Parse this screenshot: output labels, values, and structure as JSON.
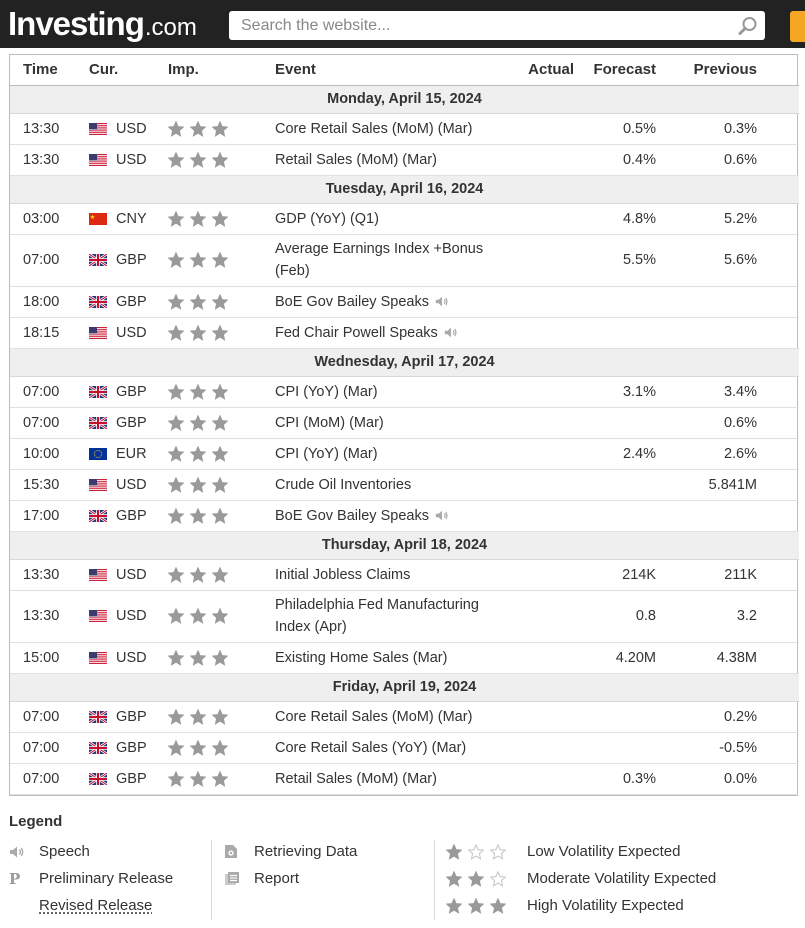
{
  "header": {
    "logo_main": "Investing",
    "logo_suffix": ".com",
    "search_placeholder": "Search the website..."
  },
  "columns": {
    "time": "Time",
    "currency": "Cur.",
    "importance": "Imp.",
    "event": "Event",
    "actual": "Actual",
    "forecast": "Forecast",
    "previous": "Previous"
  },
  "colors": {
    "star": "#9a9a9a",
    "day_row": "#efefef",
    "header_bar": "#222222"
  },
  "calendar": [
    {
      "type": "day",
      "label": "Monday, April 15, 2024"
    },
    {
      "type": "event",
      "time": "13:30",
      "flag": "us",
      "currency": "USD",
      "stars": 3,
      "event": "Core Retail Sales (MoM) (Mar)",
      "actual": "",
      "forecast": "0.5%",
      "previous": "0.3%"
    },
    {
      "type": "event",
      "time": "13:30",
      "flag": "us",
      "currency": "USD",
      "stars": 3,
      "event": "Retail Sales (MoM) (Mar)",
      "actual": "",
      "forecast": "0.4%",
      "previous": "0.6%"
    },
    {
      "type": "day",
      "label": "Tuesday, April 16, 2024"
    },
    {
      "type": "event",
      "time": "03:00",
      "flag": "cn",
      "currency": "CNY",
      "stars": 3,
      "event": "GDP (YoY) (Q1)",
      "actual": "",
      "forecast": "4.8%",
      "previous": "5.2%"
    },
    {
      "type": "event",
      "time": "07:00",
      "flag": "gb",
      "currency": "GBP",
      "stars": 3,
      "event": "Average Earnings Index +Bonus (Feb)",
      "actual": "",
      "forecast": "5.5%",
      "previous": "5.6%",
      "tall": true
    },
    {
      "type": "event",
      "time": "18:00",
      "flag": "gb",
      "currency": "GBP",
      "stars": 3,
      "event": "BoE Gov Bailey Speaks",
      "speech": true,
      "actual": "",
      "forecast": "",
      "previous": ""
    },
    {
      "type": "event",
      "time": "18:15",
      "flag": "us",
      "currency": "USD",
      "stars": 3,
      "event": "Fed Chair Powell Speaks",
      "speech": true,
      "actual": "",
      "forecast": "",
      "previous": ""
    },
    {
      "type": "day",
      "label": "Wednesday, April 17, 2024"
    },
    {
      "type": "event",
      "time": "07:00",
      "flag": "gb",
      "currency": "GBP",
      "stars": 3,
      "event": "CPI (YoY) (Mar)",
      "actual": "",
      "forecast": "3.1%",
      "previous": "3.4%"
    },
    {
      "type": "event",
      "time": "07:00",
      "flag": "gb",
      "currency": "GBP",
      "stars": 3,
      "event": "CPI (MoM) (Mar)",
      "actual": "",
      "forecast": "",
      "previous": "0.6%"
    },
    {
      "type": "event",
      "time": "10:00",
      "flag": "eu",
      "currency": "EUR",
      "stars": 3,
      "event": "CPI (YoY) (Mar)",
      "actual": "",
      "forecast": "2.4%",
      "previous": "2.6%"
    },
    {
      "type": "event",
      "time": "15:30",
      "flag": "us",
      "currency": "USD",
      "stars": 3,
      "event": "Crude Oil Inventories",
      "actual": "",
      "forecast": "",
      "previous": "5.841M"
    },
    {
      "type": "event",
      "time": "17:00",
      "flag": "gb",
      "currency": "GBP",
      "stars": 3,
      "event": "BoE Gov Bailey Speaks",
      "speech": true,
      "actual": "",
      "forecast": "",
      "previous": ""
    },
    {
      "type": "day",
      "label": "Thursday, April 18, 2024"
    },
    {
      "type": "event",
      "time": "13:30",
      "flag": "us",
      "currency": "USD",
      "stars": 3,
      "event": "Initial Jobless Claims",
      "actual": "",
      "forecast": "214K",
      "previous": "211K"
    },
    {
      "type": "event",
      "time": "13:30",
      "flag": "us",
      "currency": "USD",
      "stars": 3,
      "event": "Philadelphia Fed Manufacturing Index (Apr)",
      "actual": "",
      "forecast": "0.8",
      "previous": "3.2",
      "tall": true
    },
    {
      "type": "event",
      "time": "15:00",
      "flag": "us",
      "currency": "USD",
      "stars": 3,
      "event": "Existing Home Sales (Mar)",
      "actual": "",
      "forecast": "4.20M",
      "previous": "4.38M"
    },
    {
      "type": "day",
      "label": "Friday, April 19, 2024"
    },
    {
      "type": "event",
      "time": "07:00",
      "flag": "gb",
      "currency": "GBP",
      "stars": 3,
      "event": "Core Retail Sales (MoM) (Mar)",
      "actual": "",
      "forecast": "",
      "previous": "0.2%"
    },
    {
      "type": "event",
      "time": "07:00",
      "flag": "gb",
      "currency": "GBP",
      "stars": 3,
      "event": "Core Retail Sales (YoY) (Mar)",
      "actual": "",
      "forecast": "",
      "previous": "-0.5%"
    },
    {
      "type": "event",
      "time": "07:00",
      "flag": "gb",
      "currency": "GBP",
      "stars": 3,
      "event": "Retail Sales (MoM) (Mar)",
      "actual": "",
      "forecast": "0.3%",
      "previous": "0.0%"
    }
  ],
  "legend": {
    "title": "Legend",
    "col1": [
      {
        "icon": "speech-icon",
        "label": "Speech"
      },
      {
        "icon": "preliminary-icon",
        "label": "Preliminary Release"
      },
      {
        "icon": "",
        "label": "Revised Release"
      }
    ],
    "col2": [
      {
        "icon": "retrieving-data-icon",
        "label": "Retrieving Data"
      },
      {
        "icon": "report-icon",
        "label": "Report"
      }
    ],
    "col3": [
      {
        "stars": 1,
        "label": "Low Volatility Expected"
      },
      {
        "stars": 2,
        "label": "Moderate Volatility Expected"
      },
      {
        "stars": 3,
        "label": "High Volatility Expected"
      }
    ]
  }
}
